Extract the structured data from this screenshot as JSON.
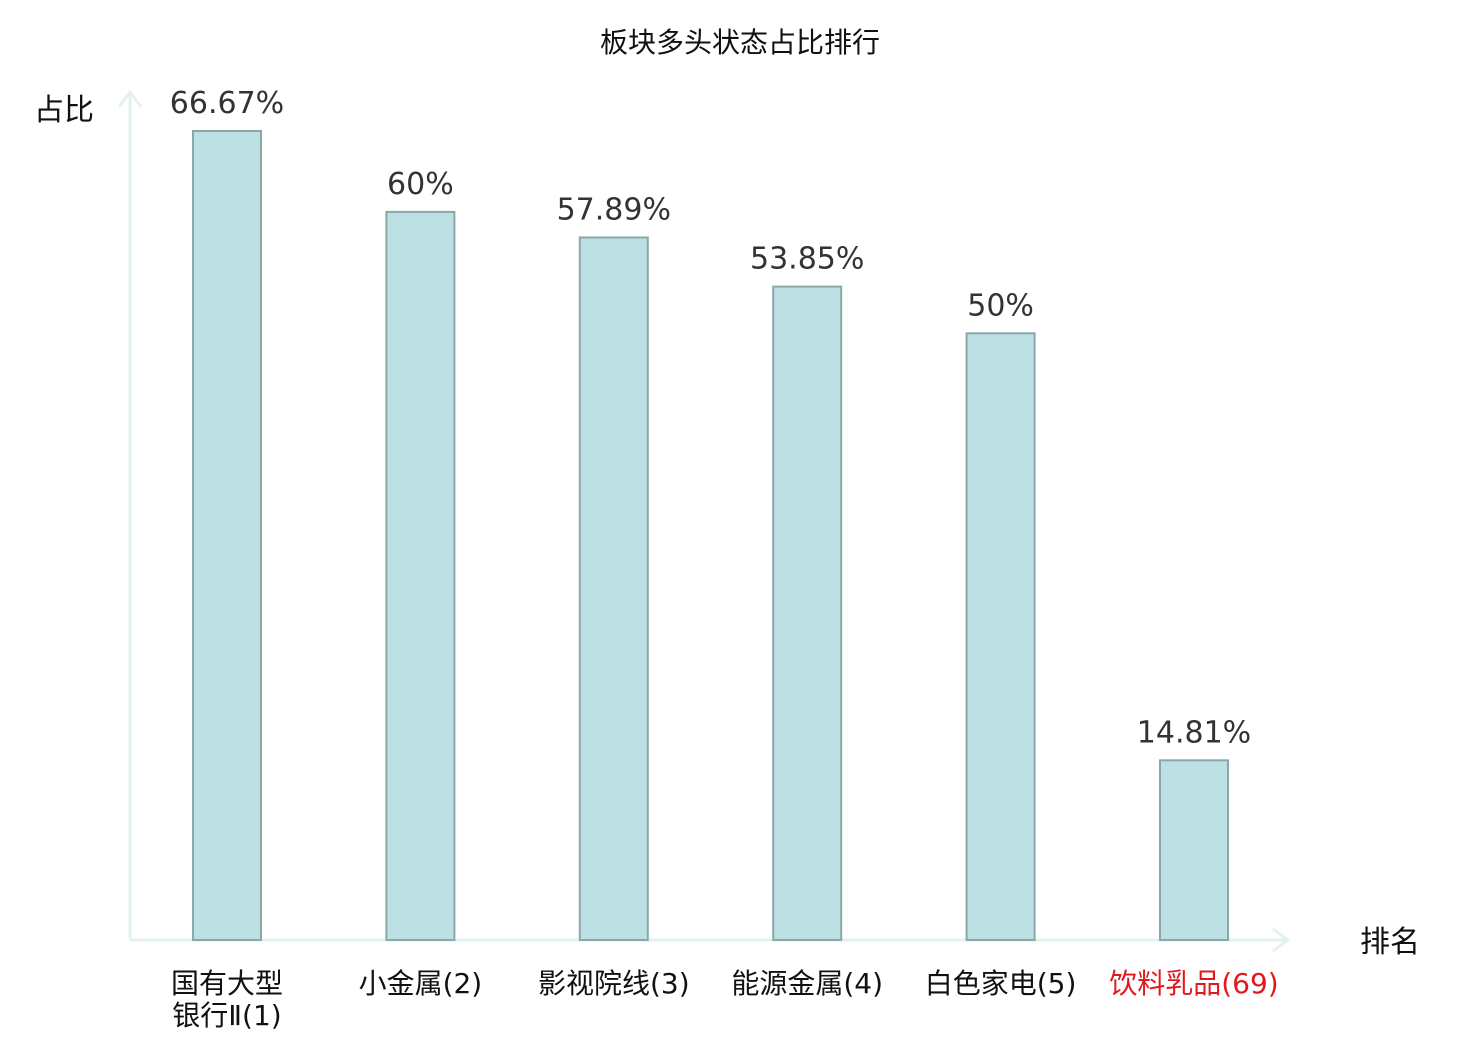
{
  "chart_data": {
    "type": "bar",
    "title": "板块多头状态占比排行",
    "ylabel": "占比",
    "xlabel": "排名",
    "ylim": [
      0,
      75
    ],
    "grid": false,
    "categories": [
      [
        "国有大型",
        "银行Ⅱ(1)"
      ],
      [
        "小金属(2)"
      ],
      [
        "影视院线(3)"
      ],
      [
        "能源金属(4)"
      ],
      [
        "白色家电(5)"
      ],
      [
        "饮料乳品(69)"
      ]
    ],
    "values": [
      66.67,
      60,
      57.89,
      53.85,
      50,
      14.81
    ],
    "value_labels": [
      "66.67%",
      "60%",
      "57.89%",
      "53.85%",
      "50%",
      "14.81%"
    ],
    "highlight_index": 5,
    "colors": {
      "bar_fill": "#bce0e3",
      "bar_stroke": "#8aa8aa",
      "axis": "#e2f2f0",
      "highlight_text": "#e0191e"
    }
  }
}
